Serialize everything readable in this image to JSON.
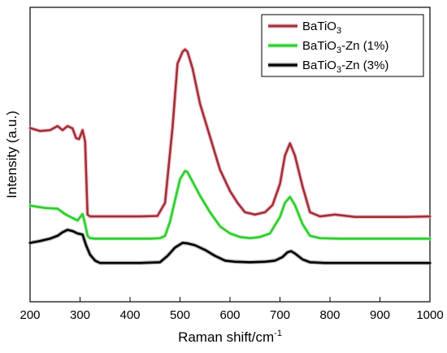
{
  "chart_data": {
    "type": "line",
    "xlabel": "Raman shift/cm",
    "xlabel_superscript": "-1",
    "ylabel": "Intensity (a.u.)",
    "xlim": [
      200,
      1000
    ],
    "ylim": [
      0,
      1
    ],
    "x_ticks": [
      200,
      300,
      400,
      500,
      600,
      700,
      800,
      900,
      1000
    ],
    "y_ticks_shown": false,
    "grid": false,
    "legend_position": "top-right",
    "series": [
      {
        "name_main": "BaTiO",
        "name_sub": "3",
        "name_tail": "",
        "color": "#a0322e",
        "glow": "#f0a0c8",
        "x": [
          200,
          220,
          240,
          255,
          265,
          275,
          285,
          292,
          298,
          305,
          310,
          315,
          320,
          340,
          380,
          420,
          455,
          470,
          485,
          495,
          505,
          510,
          515,
          525,
          540,
          560,
          580,
          600,
          615,
          630,
          650,
          670,
          685,
          700,
          710,
          720,
          730,
          745,
          760,
          780,
          810,
          850,
          900,
          950,
          1000
        ],
        "y": [
          0.647,
          0.634,
          0.638,
          0.655,
          0.638,
          0.655,
          0.645,
          0.604,
          0.6,
          0.638,
          0.59,
          0.28,
          0.272,
          0.272,
          0.272,
          0.272,
          0.274,
          0.33,
          0.65,
          0.92,
          0.97,
          0.98,
          0.97,
          0.9,
          0.75,
          0.61,
          0.47,
          0.38,
          0.33,
          0.29,
          0.28,
          0.29,
          0.32,
          0.41,
          0.53,
          0.582,
          0.53,
          0.4,
          0.29,
          0.272,
          0.28,
          0.27,
          0.27,
          0.27,
          0.272
        ]
      },
      {
        "name_main": "BaTiO",
        "name_sub": "3",
        "name_tail": "-Zn (1%)",
        "color": "#2ecc2e",
        "glow": "#a8f0a8",
        "x": [
          200,
          230,
          255,
          270,
          285,
          295,
          305,
          310,
          315,
          320,
          330,
          360,
          400,
          440,
          460,
          470,
          480,
          490,
          500,
          510,
          515,
          525,
          540,
          560,
          580,
          600,
          620,
          640,
          660,
          680,
          700,
          710,
          720,
          730,
          745,
          760,
          780,
          820,
          880,
          950,
          1000
        ],
        "y": [
          0.318,
          0.308,
          0.305,
          0.282,
          0.265,
          0.255,
          0.282,
          0.24,
          0.19,
          0.18,
          0.178,
          0.178,
          0.178,
          0.178,
          0.18,
          0.19,
          0.25,
          0.34,
          0.43,
          0.465,
          0.46,
          0.42,
          0.36,
          0.29,
          0.23,
          0.2,
          0.185,
          0.18,
          0.185,
          0.2,
          0.27,
          0.33,
          0.355,
          0.32,
          0.24,
          0.19,
          0.18,
          0.178,
          0.178,
          0.178,
          0.178
        ]
      },
      {
        "name_main": "BaTiO",
        "name_sub": "3",
        "name_tail": "-Zn (3%)",
        "color": "#000000",
        "glow": "#888888",
        "x": [
          200,
          220,
          240,
          255,
          265,
          275,
          285,
          295,
          305,
          312,
          320,
          330,
          340,
          370,
          420,
          460,
          475,
          490,
          505,
          515,
          530,
          550,
          570,
          590,
          610,
          640,
          670,
          690,
          705,
          715,
          722,
          730,
          745,
          760,
          790,
          850,
          900,
          950,
          1000
        ],
        "y": [
          0.16,
          0.168,
          0.178,
          0.19,
          0.205,
          0.215,
          0.21,
          0.2,
          0.195,
          0.15,
          0.11,
          0.085,
          0.075,
          0.075,
          0.075,
          0.078,
          0.105,
          0.14,
          0.16,
          0.158,
          0.15,
          0.13,
          0.105,
          0.085,
          0.08,
          0.078,
          0.08,
          0.085,
          0.1,
          0.12,
          0.125,
          0.115,
          0.09,
          0.078,
          0.075,
          0.075,
          0.075,
          0.075,
          0.075
        ]
      }
    ]
  }
}
